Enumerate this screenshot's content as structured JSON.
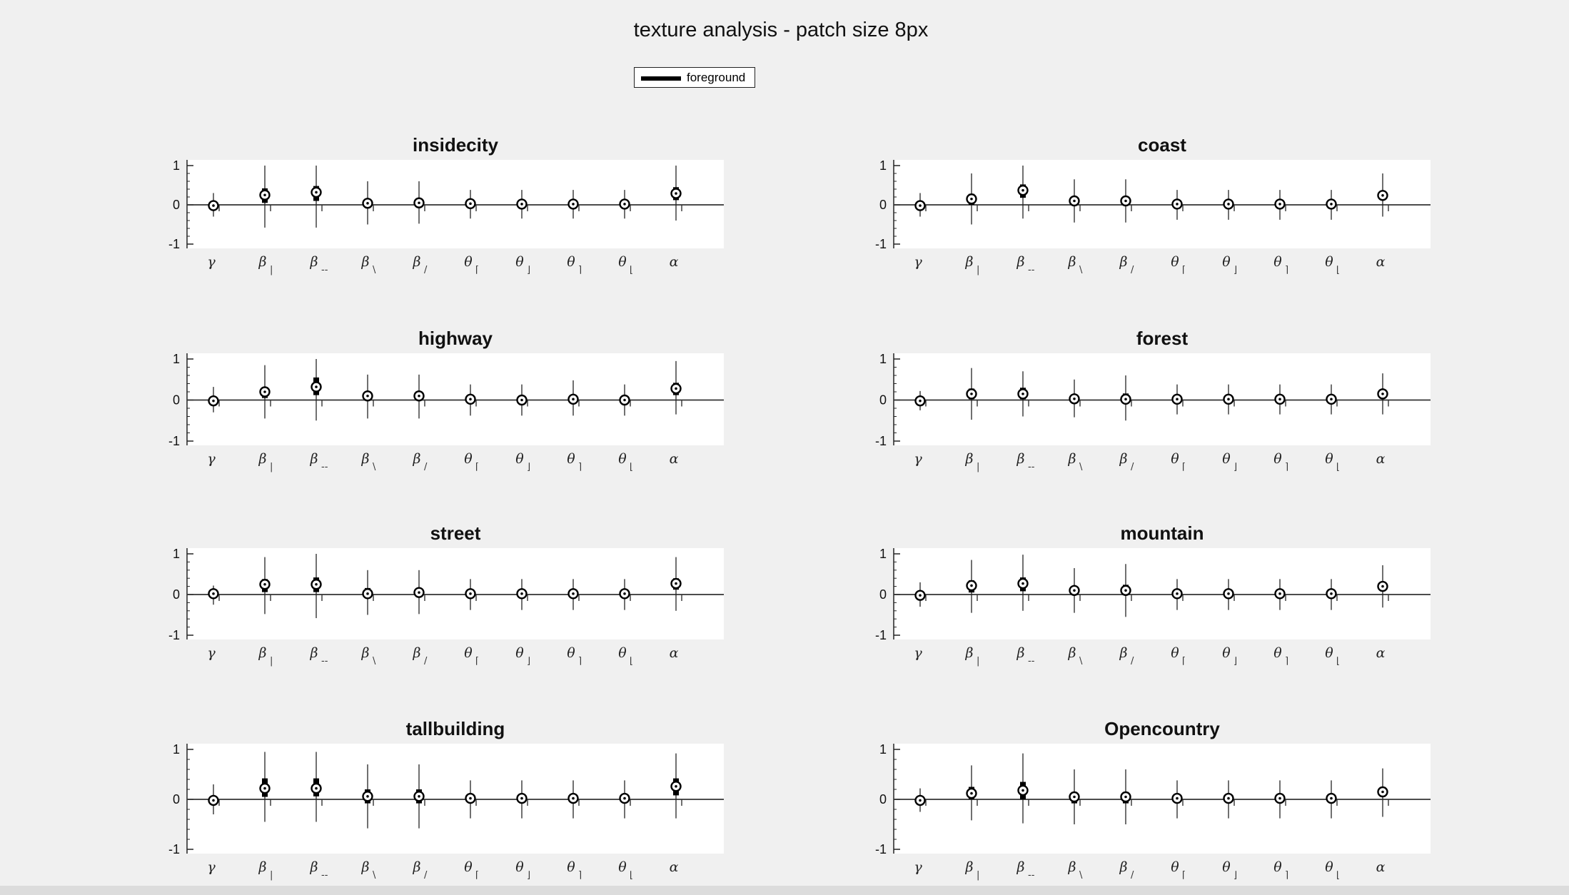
{
  "title": "texture analysis - patch size 8px",
  "legend": {
    "label": "foreground"
  },
  "colors": {
    "background": "#f0f0f0",
    "plot_area": "#ffffff",
    "marks": "#000000"
  },
  "x_tick_labels": [
    {
      "base": "γ",
      "sub": ""
    },
    {
      "base": "β",
      "sub": "|"
    },
    {
      "base": "β",
      "sub": "--"
    },
    {
      "base": "β",
      "sub": "\\"
    },
    {
      "base": "β",
      "sub": "/"
    },
    {
      "base": "θ",
      "sub": "⌈"
    },
    {
      "base": "θ",
      "sub": "⌋"
    },
    {
      "base": "θ",
      "sub": "⌉"
    },
    {
      "base": "θ",
      "sub": "⌊"
    },
    {
      "base": "α",
      "sub": ""
    }
  ],
  "y_ticks": [
    1,
    0,
    -1
  ],
  "chart_data": [
    {
      "type": "scatter",
      "title": "insidecity",
      "ylim": [
        -1,
        1
      ],
      "series": [
        {
          "name": "foreground",
          "mean": [
            -0.02,
            0.25,
            0.32,
            0.04,
            0.05,
            0.03,
            0.02,
            0.02,
            0.02,
            0.29
          ],
          "box_low": [
            -0.08,
            0.05,
            0.1,
            -0.04,
            -0.03,
            -0.02,
            -0.03,
            -0.03,
            -0.03,
            0.12
          ],
          "box_high": [
            0.04,
            0.42,
            0.48,
            0.15,
            0.14,
            0.07,
            0.06,
            0.06,
            0.06,
            0.45
          ],
          "whisker_low": [
            -0.3,
            -0.58,
            -0.58,
            -0.5,
            -0.48,
            -0.35,
            -0.35,
            -0.35,
            -0.35,
            -0.4
          ],
          "whisker_high": [
            0.3,
            1.0,
            1.0,
            0.6,
            0.6,
            0.38,
            0.38,
            0.38,
            0.38,
            1.0
          ]
        }
      ]
    },
    {
      "type": "scatter",
      "title": "coast",
      "ylim": [
        -1,
        1
      ],
      "series": [
        {
          "name": "foreground",
          "mean": [
            -0.02,
            0.15,
            0.37,
            0.1,
            0.1,
            0.02,
            0.02,
            0.02,
            0.02,
            0.24
          ],
          "box_low": [
            -0.07,
            0.0,
            0.18,
            0.0,
            0.0,
            -0.03,
            -0.03,
            -0.03,
            -0.03,
            0.12
          ],
          "box_high": [
            0.03,
            0.28,
            0.52,
            0.18,
            0.18,
            0.06,
            0.06,
            0.06,
            0.06,
            0.36
          ],
          "whisker_low": [
            -0.3,
            -0.5,
            -0.35,
            -0.45,
            -0.45,
            -0.38,
            -0.38,
            -0.38,
            -0.38,
            -0.3
          ],
          "whisker_high": [
            0.3,
            0.8,
            1.0,
            0.65,
            0.65,
            0.38,
            0.38,
            0.38,
            0.38,
            0.8
          ]
        }
      ]
    },
    {
      "type": "scatter",
      "title": "highway",
      "ylim": [
        -1,
        1
      ],
      "series": [
        {
          "name": "foreground",
          "mean": [
            -0.02,
            0.2,
            0.32,
            0.1,
            0.1,
            0.02,
            0.0,
            0.02,
            0.0,
            0.28
          ],
          "box_low": [
            -0.07,
            0.05,
            0.12,
            0.0,
            0.0,
            -0.03,
            -0.04,
            -0.03,
            -0.04,
            0.12
          ],
          "box_high": [
            0.03,
            0.32,
            0.55,
            0.18,
            0.18,
            0.06,
            0.05,
            0.06,
            0.05,
            0.42
          ],
          "whisker_low": [
            -0.3,
            -0.45,
            -0.5,
            -0.45,
            -0.45,
            -0.38,
            -0.38,
            -0.38,
            -0.38,
            -0.35
          ],
          "whisker_high": [
            0.32,
            0.85,
            1.0,
            0.62,
            0.62,
            0.38,
            0.38,
            0.48,
            0.38,
            0.95
          ]
        }
      ]
    },
    {
      "type": "scatter",
      "title": "forest",
      "ylim": [
        -1,
        1
      ],
      "series": [
        {
          "name": "foreground",
          "mean": [
            -0.02,
            0.15,
            0.15,
            0.03,
            0.02,
            0.02,
            0.02,
            0.02,
            0.02,
            0.15
          ],
          "box_low": [
            -0.06,
            0.02,
            0.02,
            -0.04,
            -0.05,
            -0.03,
            -0.03,
            -0.03,
            -0.03,
            0.05
          ],
          "box_high": [
            0.03,
            0.28,
            0.3,
            0.1,
            0.16,
            0.06,
            0.06,
            0.06,
            0.06,
            0.25
          ],
          "whisker_low": [
            -0.25,
            -0.48,
            -0.4,
            -0.42,
            -0.5,
            -0.35,
            -0.35,
            -0.35,
            -0.35,
            -0.35
          ],
          "whisker_high": [
            0.22,
            0.78,
            0.7,
            0.5,
            0.6,
            0.38,
            0.38,
            0.38,
            0.38,
            0.65
          ]
        }
      ]
    },
    {
      "type": "scatter",
      "title": "street",
      "ylim": [
        -1,
        1
      ],
      "series": [
        {
          "name": "foreground",
          "mean": [
            0.02,
            0.25,
            0.25,
            0.02,
            0.05,
            0.02,
            0.02,
            0.02,
            0.02,
            0.27
          ],
          "box_low": [
            -0.04,
            0.06,
            0.06,
            -0.05,
            -0.03,
            -0.03,
            -0.03,
            -0.03,
            -0.03,
            0.12
          ],
          "box_high": [
            0.06,
            0.38,
            0.42,
            0.16,
            0.14,
            0.06,
            0.06,
            0.06,
            0.06,
            0.4
          ],
          "whisker_low": [
            -0.25,
            -0.48,
            -0.58,
            -0.5,
            -0.48,
            -0.38,
            -0.38,
            -0.38,
            -0.38,
            -0.4
          ],
          "whisker_high": [
            0.22,
            0.92,
            1.0,
            0.6,
            0.6,
            0.38,
            0.38,
            0.38,
            0.38,
            0.92
          ]
        }
      ]
    },
    {
      "type": "scatter",
      "title": "mountain",
      "ylim": [
        -1,
        1
      ],
      "series": [
        {
          "name": "foreground",
          "mean": [
            -0.02,
            0.22,
            0.27,
            0.1,
            0.1,
            0.02,
            0.02,
            0.02,
            0.02,
            0.2
          ],
          "box_low": [
            -0.07,
            0.05,
            0.08,
            0.0,
            0.0,
            -0.03,
            -0.03,
            -0.03,
            -0.03,
            0.08
          ],
          "box_high": [
            0.03,
            0.35,
            0.42,
            0.18,
            0.24,
            0.06,
            0.06,
            0.06,
            0.06,
            0.3
          ],
          "whisker_low": [
            -0.3,
            -0.45,
            -0.4,
            -0.45,
            -0.55,
            -0.38,
            -0.38,
            -0.38,
            -0.38,
            -0.32
          ],
          "whisker_high": [
            0.3,
            0.85,
            0.98,
            0.65,
            0.75,
            0.38,
            0.38,
            0.38,
            0.38,
            0.72
          ]
        }
      ]
    },
    {
      "type": "scatter",
      "title": "tallbuilding",
      "ylim": [
        -1,
        1
      ],
      "series": [
        {
          "name": "foreground",
          "mean": [
            -0.02,
            0.22,
            0.22,
            0.06,
            0.06,
            0.02,
            0.02,
            0.02,
            0.02,
            0.26
          ],
          "box_low": [
            -0.07,
            0.05,
            0.06,
            -0.08,
            -0.08,
            -0.03,
            -0.03,
            -0.03,
            -0.03,
            0.08
          ],
          "box_high": [
            0.03,
            0.42,
            0.42,
            0.2,
            0.2,
            0.06,
            0.06,
            0.06,
            0.06,
            0.42
          ],
          "whisker_low": [
            -0.3,
            -0.45,
            -0.45,
            -0.58,
            -0.58,
            -0.38,
            -0.38,
            -0.38,
            -0.38,
            -0.38
          ],
          "whisker_high": [
            0.3,
            0.95,
            0.95,
            0.7,
            0.7,
            0.38,
            0.38,
            0.38,
            0.38,
            0.92
          ]
        }
      ]
    },
    {
      "type": "scatter",
      "title": "Opencountry",
      "ylim": [
        -1,
        1
      ],
      "series": [
        {
          "name": "foreground",
          "mean": [
            -0.02,
            0.12,
            0.18,
            0.05,
            0.05,
            0.02,
            0.02,
            0.02,
            0.02,
            0.15
          ],
          "box_low": [
            -0.06,
            0.0,
            0.0,
            -0.08,
            -0.08,
            -0.03,
            -0.03,
            -0.03,
            -0.03,
            0.05
          ],
          "box_high": [
            0.03,
            0.25,
            0.35,
            0.15,
            0.15,
            0.06,
            0.06,
            0.06,
            0.06,
            0.25
          ],
          "whisker_low": [
            -0.25,
            -0.42,
            -0.48,
            -0.5,
            -0.5,
            -0.38,
            -0.38,
            -0.38,
            -0.38,
            -0.35
          ],
          "whisker_high": [
            0.22,
            0.68,
            0.92,
            0.6,
            0.6,
            0.38,
            0.38,
            0.38,
            0.38,
            0.62
          ]
        }
      ]
    }
  ]
}
